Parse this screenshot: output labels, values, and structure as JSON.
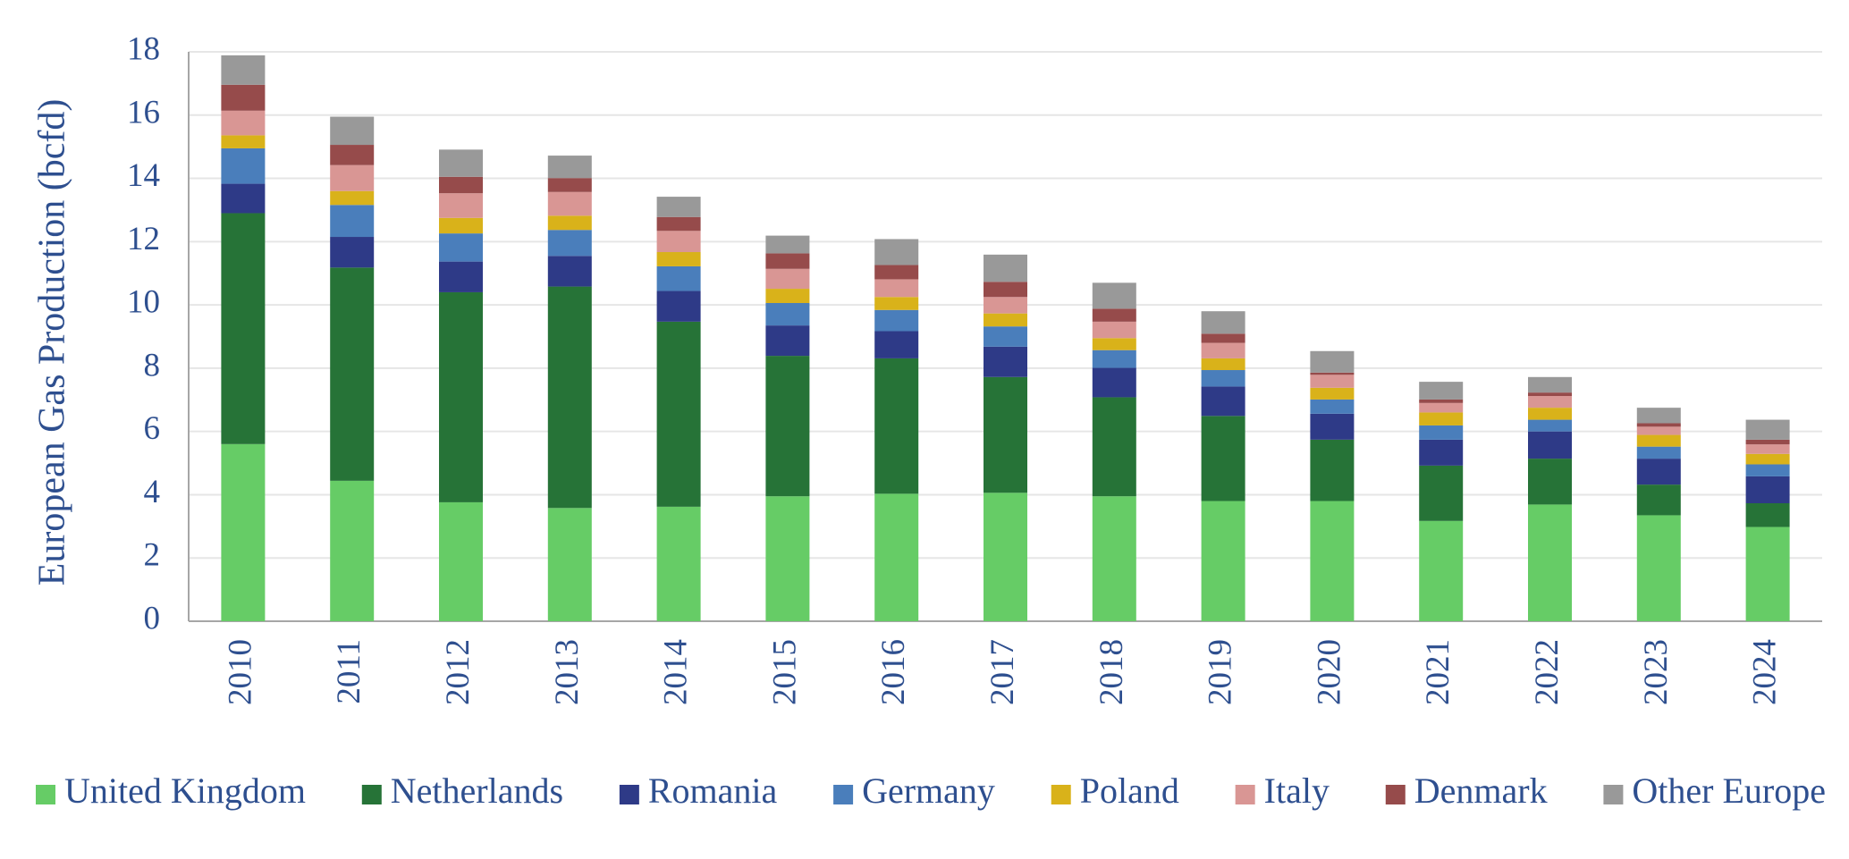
{
  "chart_data": {
    "type": "stacked_bar",
    "y_label": "European Gas Production (bcfd)",
    "categories": [
      "2010",
      "2011",
      "2012",
      "2013",
      "2014",
      "2015",
      "2016",
      "2017",
      "2018",
      "2019",
      "2020",
      "2021",
      "2022",
      "2023",
      "2024"
    ],
    "series": [
      {
        "name": "United Kingdom",
        "color": "#66cc66",
        "values": [
          5.6,
          4.44,
          3.76,
          3.58,
          3.62,
          3.95,
          4.03,
          4.06,
          3.95,
          3.8,
          3.8,
          3.17,
          3.69,
          3.35,
          2.98
        ]
      },
      {
        "name": "Netherlands",
        "color": "#267337",
        "values": [
          7.3,
          6.74,
          6.64,
          7.0,
          5.85,
          4.44,
          4.28,
          3.66,
          3.13,
          2.69,
          1.94,
          1.75,
          1.45,
          0.97,
          0.75
        ]
      },
      {
        "name": "Romania",
        "color": "#2e3a87",
        "values": [
          0.93,
          0.97,
          0.97,
          0.97,
          0.97,
          0.96,
          0.86,
          0.96,
          0.93,
          0.93,
          0.82,
          0.82,
          0.86,
          0.82,
          0.85
        ]
      },
      {
        "name": "Germany",
        "color": "#4a7ebb",
        "values": [
          1.12,
          1.01,
          0.89,
          0.82,
          0.78,
          0.71,
          0.67,
          0.64,
          0.56,
          0.52,
          0.45,
          0.45,
          0.37,
          0.38,
          0.38
        ]
      },
      {
        "name": "Poland",
        "color": "#d9b21a",
        "values": [
          0.41,
          0.44,
          0.49,
          0.45,
          0.45,
          0.45,
          0.41,
          0.41,
          0.38,
          0.37,
          0.37,
          0.41,
          0.38,
          0.37,
          0.33
        ]
      },
      {
        "name": "Italy",
        "color": "#d99694",
        "values": [
          0.78,
          0.82,
          0.78,
          0.75,
          0.67,
          0.63,
          0.56,
          0.52,
          0.52,
          0.49,
          0.41,
          0.3,
          0.37,
          0.26,
          0.3
        ]
      },
      {
        "name": "Denmark",
        "color": "#964b4b",
        "values": [
          0.82,
          0.64,
          0.52,
          0.44,
          0.44,
          0.49,
          0.45,
          0.48,
          0.41,
          0.29,
          0.07,
          0.11,
          0.11,
          0.11,
          0.15
        ]
      },
      {
        "name": "Other Europe",
        "color": "#999999",
        "values": [
          0.93,
          0.89,
          0.86,
          0.71,
          0.64,
          0.56,
          0.82,
          0.86,
          0.82,
          0.71,
          0.68,
          0.56,
          0.49,
          0.49,
          0.63
        ]
      }
    ],
    "ylim": [
      0,
      18
    ],
    "yticks": [
      0,
      2,
      4,
      6,
      8,
      10,
      12,
      14,
      16,
      18
    ],
    "grid": true,
    "legend": "bottom"
  }
}
